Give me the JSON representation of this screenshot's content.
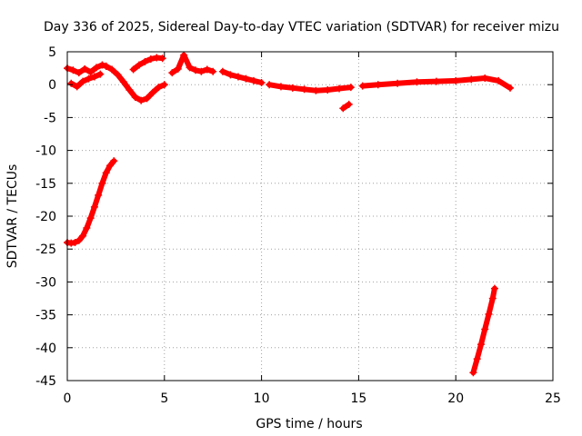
{
  "chart_data": {
    "type": "scatter",
    "title": "Day 336 of 2025, Sidereal Day-to-day VTEC variation (SDTVAR) for receiver mizu",
    "xlabel": "GPS time / hours",
    "ylabel": "SDTVAR / TECUs",
    "xlim": [
      0,
      25
    ],
    "ylim": [
      -45,
      5
    ],
    "x_ticks": [
      "0",
      "5",
      "10",
      "15",
      "20",
      "25"
    ],
    "y_ticks": [
      "5",
      "0",
      "-5",
      "-10",
      "-15",
      "-20",
      "-25",
      "-30",
      "-35",
      "-40",
      "-45"
    ],
    "x_tick_values": [
      0,
      5,
      10,
      15,
      20,
      25
    ],
    "y_tick_values": [
      5,
      0,
      -5,
      -10,
      -15,
      -20,
      -25,
      -30,
      -35,
      -40,
      -45
    ],
    "grid": true,
    "marker": "+",
    "color": "#ff0000",
    "series": [
      {
        "name": "SDTVAR",
        "segments": [
          {
            "x": [
              0.0,
              0.3,
              0.6,
              0.9,
              1.2,
              1.5,
              1.8,
              2.0
            ],
            "y": [
              2.5,
              2.2,
              1.8,
              2.4,
              1.9,
              2.6,
              3.0,
              2.8
            ]
          },
          {
            "x": [
              0.2,
              0.5,
              0.8,
              1.1,
              1.4,
              1.7
            ],
            "y": [
              0.2,
              -0.3,
              0.5,
              0.9,
              1.2,
              1.6
            ]
          },
          {
            "x": [
              2.0,
              2.3,
              2.6,
              2.9,
              3.2,
              3.5,
              3.8,
              4.1,
              4.4,
              4.7,
              5.0
            ],
            "y": [
              2.8,
              2.3,
              1.5,
              0.4,
              -0.8,
              -1.9,
              -2.4,
              -2.1,
              -1.2,
              -0.4,
              0.0
            ]
          },
          {
            "x": [
              3.4,
              3.7,
              4.0,
              4.3,
              4.6,
              4.9
            ],
            "y": [
              2.3,
              3.0,
              3.5,
              3.9,
              4.1,
              4.0
            ]
          },
          {
            "x": [
              5.4,
              5.7,
              6.0,
              6.3,
              6.6,
              6.9,
              7.2,
              7.5
            ],
            "y": [
              1.8,
              2.4,
              4.5,
              2.6,
              2.2,
              2.0,
              2.3,
              2.0
            ]
          },
          {
            "x": [
              8.0,
              8.4,
              8.8,
              9.2,
              9.6,
              10.0
            ],
            "y": [
              2.0,
              1.5,
              1.2,
              0.9,
              0.6,
              0.3
            ]
          },
          {
            "x": [
              10.4,
              11.0,
              11.6,
              12.2,
              12.8,
              13.4,
              14.0,
              14.6
            ],
            "y": [
              0.0,
              -0.3,
              -0.5,
              -0.7,
              -0.9,
              -0.8,
              -0.6,
              -0.4
            ]
          },
          {
            "x": [
              14.2,
              14.5
            ],
            "y": [
              -3.6,
              -3.0
            ]
          },
          {
            "x": [
              15.2,
              16.0,
              17.0,
              18.0,
              19.0,
              20.0,
              20.8,
              21.5,
              22.2,
              22.8
            ],
            "y": [
              -0.2,
              0.0,
              0.2,
              0.4,
              0.5,
              0.6,
              0.8,
              1.0,
              0.6,
              -0.5
            ]
          },
          {
            "x": [
              0.0,
              0.2,
              0.4,
              0.6,
              0.8,
              1.0,
              1.2,
              1.4,
              1.6,
              1.8,
              2.0,
              2.2,
              2.4
            ],
            "y": [
              -24.0,
              -24.1,
              -24.0,
              -23.7,
              -23.0,
              -21.8,
              -20.3,
              -18.6,
              -16.8,
              -15.0,
              -13.4,
              -12.3,
              -11.6
            ]
          },
          {
            "x": [
              20.9,
              21.1,
              21.3,
              21.5,
              21.7,
              21.9,
              22.0
            ],
            "y": [
              -43.8,
              -41.7,
              -39.5,
              -37.2,
              -34.9,
              -32.5,
              -31.0
            ]
          }
        ]
      }
    ]
  }
}
